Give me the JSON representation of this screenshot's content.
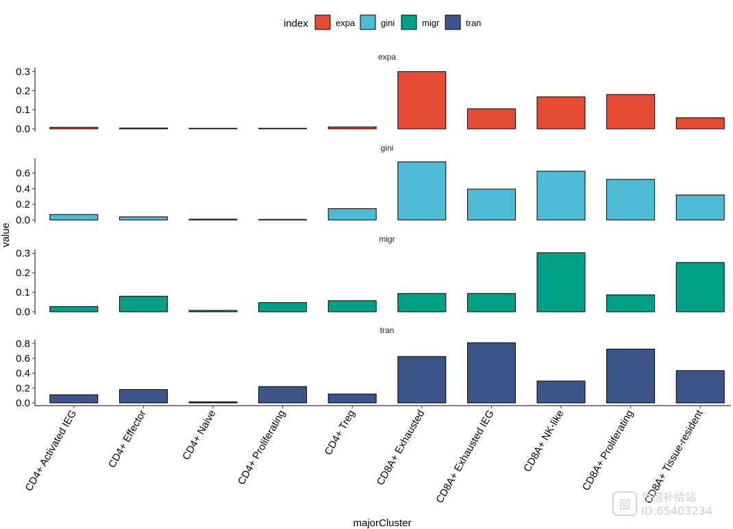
{
  "chart_data": {
    "type": "bar",
    "layout": "faceted",
    "xlabel": "majorCluster",
    "ylabel": "value",
    "legend": {
      "title": "index",
      "position": "top",
      "entries": [
        "expa",
        "gini",
        "migr",
        "tran"
      ]
    },
    "colors": {
      "expa": "#E64B35",
      "gini": "#4DBBD5",
      "migr": "#00A087",
      "tran": "#3C5488"
    },
    "categories": [
      "CD4+ Activated IEG",
      "CD4+ Effector",
      "CD4+ Naive",
      "CD4+ Proliferating",
      "CD4+ Treg",
      "CD8A+ Exhausted",
      "CD8A+ Exhausted IEG",
      "CD8A+ NK-like",
      "CD8A+ Proliferating",
      "CD8A+ Tissue-resident"
    ],
    "series": [
      {
        "name": "expa",
        "values": [
          0.008,
          0.004,
          0.002,
          0.002,
          0.01,
          0.3,
          0.105,
          0.168,
          0.18,
          0.058
        ],
        "ylim": [
          0,
          0.32
        ],
        "ticks": [
          0.0,
          0.1,
          0.2,
          0.3
        ],
        "tick_labels": [
          "0.0",
          "0.1",
          "0.2",
          "0.3"
        ]
      },
      {
        "name": "gini",
        "values": [
          0.07,
          0.04,
          0.01,
          0.005,
          0.145,
          0.745,
          0.395,
          0.625,
          0.52,
          0.32
        ],
        "ylim": [
          0,
          0.79
        ],
        "ticks": [
          0.0,
          0.2,
          0.4,
          0.6
        ],
        "tick_labels": [
          "0.0",
          "0.2",
          "0.4",
          "0.6"
        ]
      },
      {
        "name": "migr",
        "values": [
          0.027,
          0.08,
          0.007,
          0.047,
          0.057,
          0.094,
          0.094,
          0.303,
          0.087,
          0.253
        ],
        "ylim": [
          0,
          0.32
        ],
        "ticks": [
          0.0,
          0.1,
          0.2,
          0.3
        ],
        "tick_labels": [
          "0.0",
          "0.1",
          "0.2",
          "0.3"
        ]
      },
      {
        "name": "tran",
        "values": [
          0.11,
          0.18,
          0.015,
          0.22,
          0.12,
          0.625,
          0.81,
          0.295,
          0.725,
          0.435
        ],
        "ylim": [
          0,
          0.83
        ],
        "ticks": [
          0.0,
          0.2,
          0.4,
          0.6,
          0.8
        ],
        "tick_labels": [
          "0.0",
          "0.2",
          "0.4",
          "0.6",
          "0.8"
        ]
      }
    ]
  },
  "watermark": {
    "line1": "生信补给站",
    "line2": "ID:65403234"
  }
}
